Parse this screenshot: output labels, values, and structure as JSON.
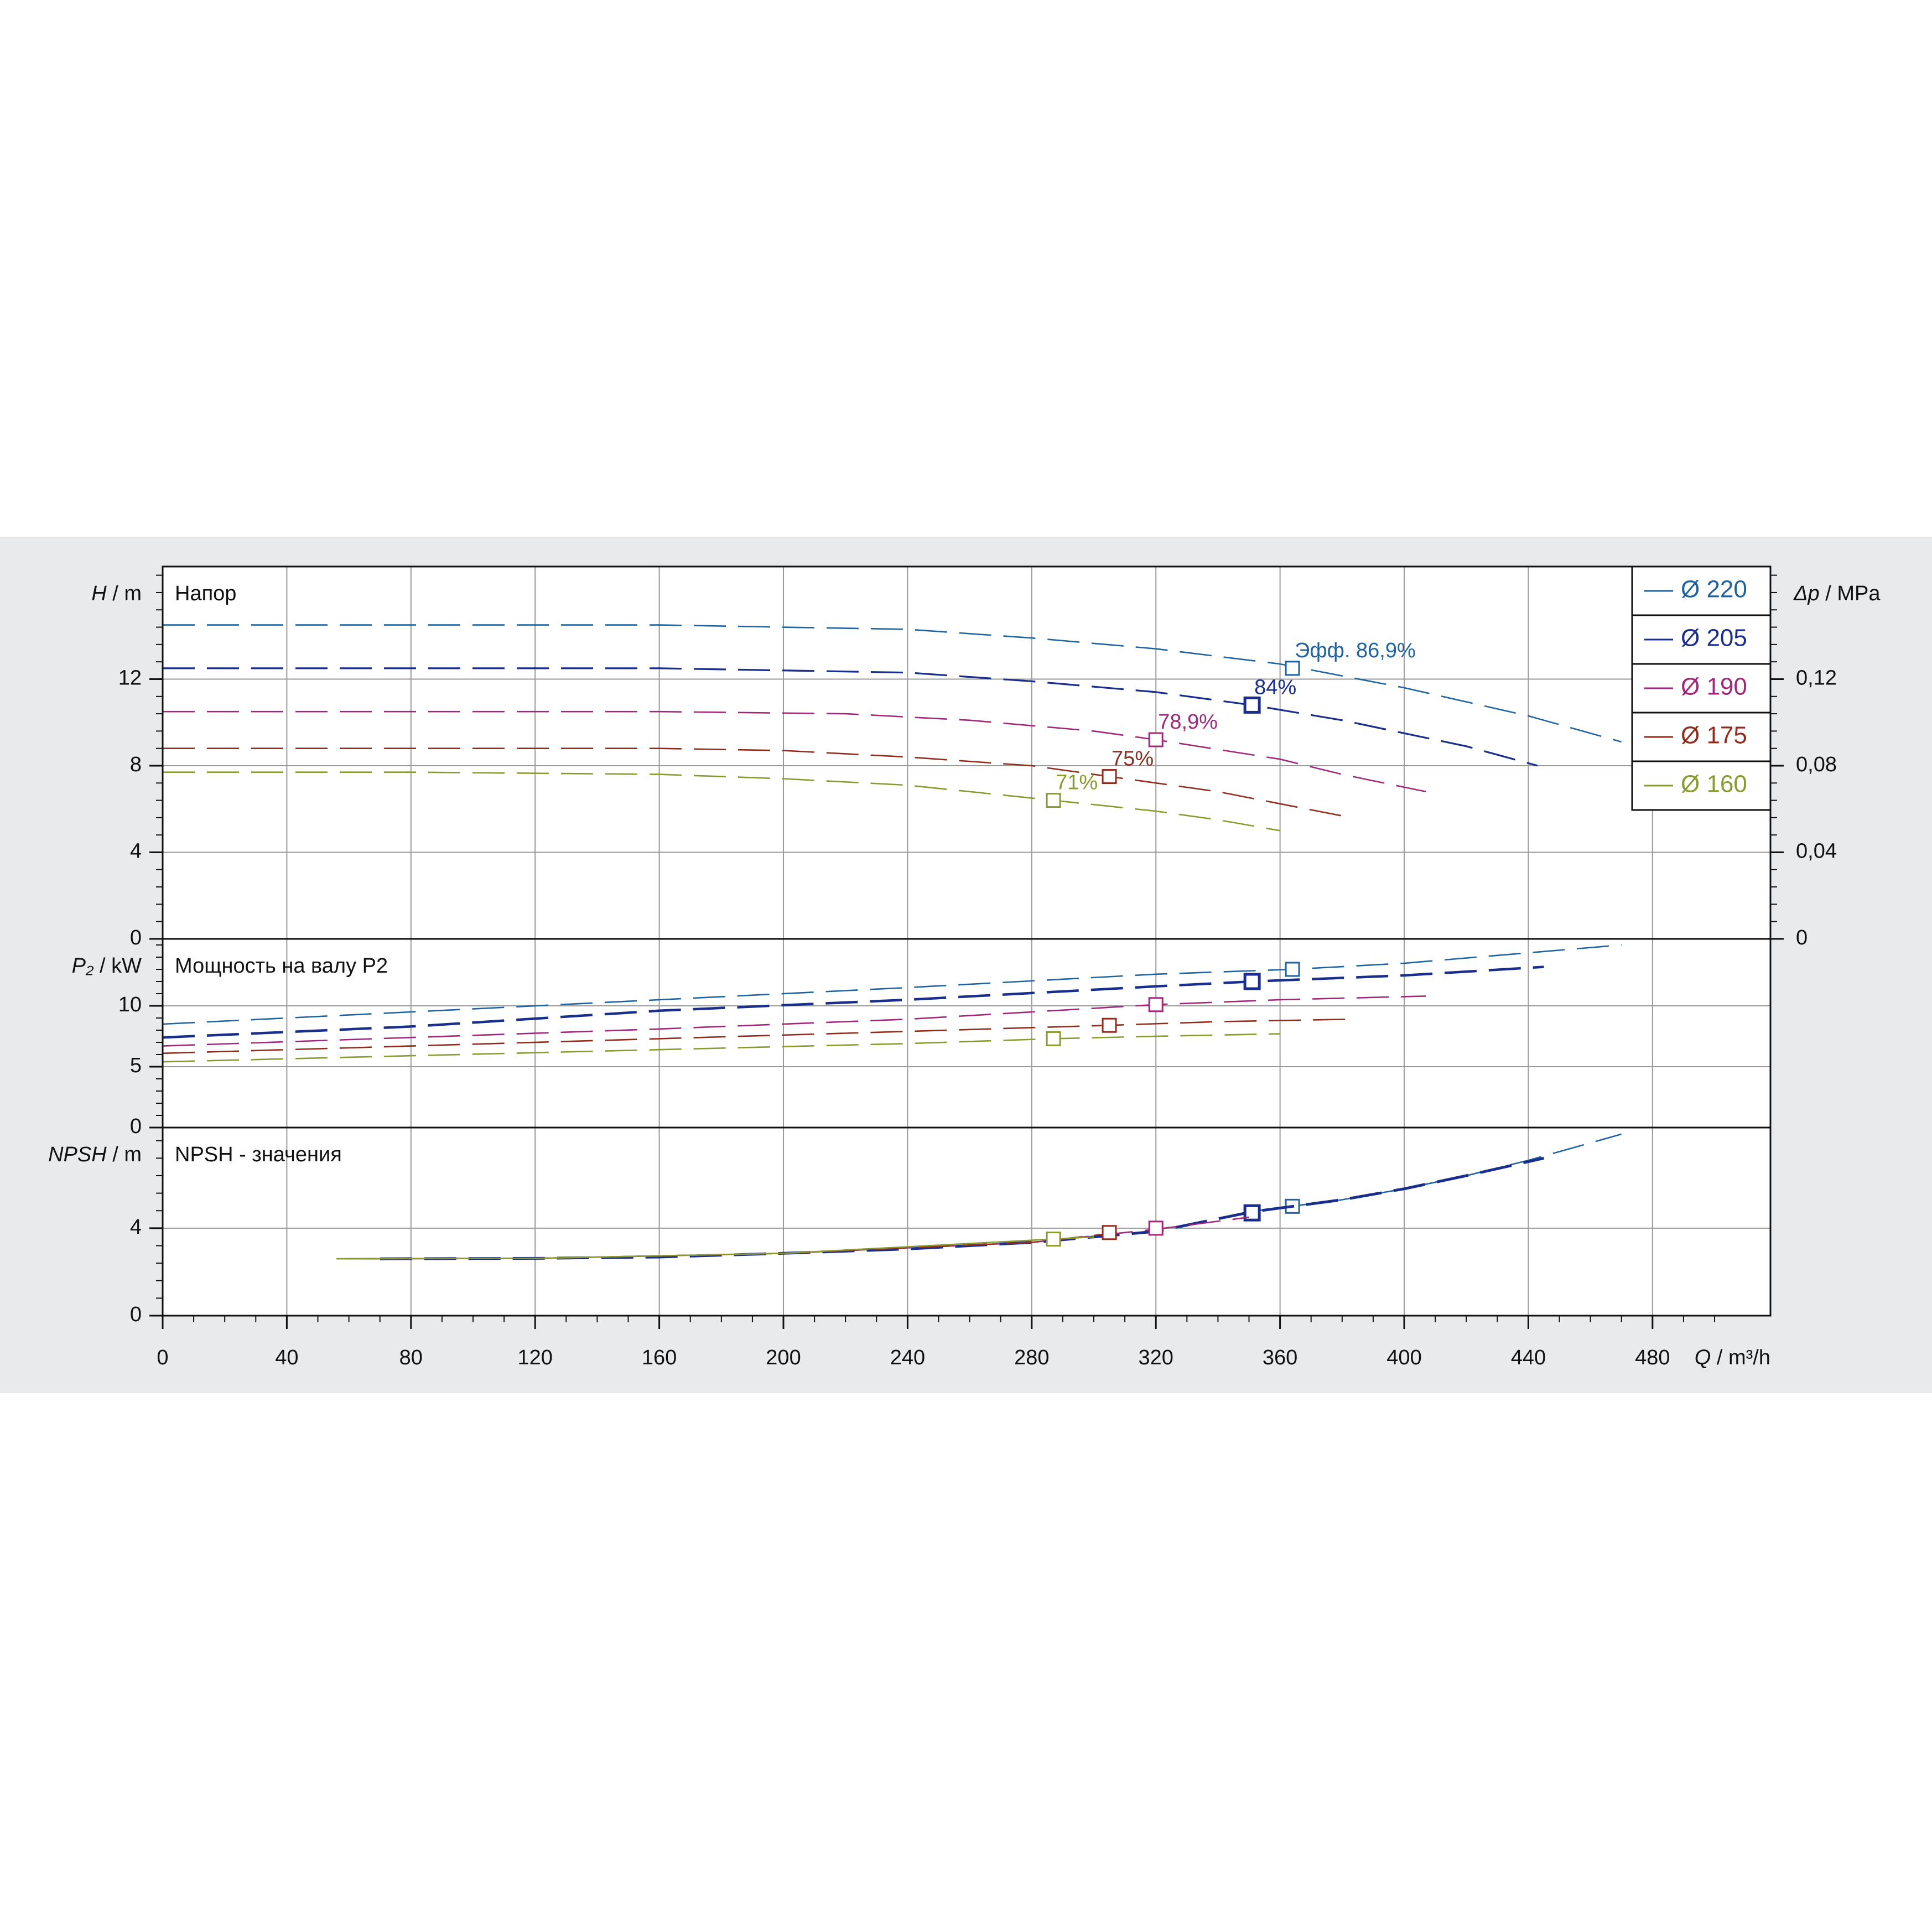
{
  "chart_data": [
    {
      "id": "head",
      "type": "line",
      "title": "Напор",
      "ylabel_var": "H",
      "ylabel_unit": " / m",
      "y2label_var": "Δp",
      "y2label_unit": " / MPa",
      "ylim": [
        0,
        17.2
      ],
      "y2lim": [
        0,
        0.172
      ],
      "yticks": [
        0,
        4,
        8,
        12
      ],
      "ytick_labels": [
        "0",
        "4",
        "8",
        "12"
      ],
      "y2ticks": [
        0,
        0.04,
        0.08,
        0.12
      ],
      "y2tick_labels": [
        "0",
        "0,04",
        "0,08",
        "0,12"
      ],
      "series": [
        {
          "name": "Ø 220",
          "color": "#1f63a0",
          "dashed": true,
          "width": 2.6,
          "x": [
            0,
            80,
            160,
            240,
            280,
            320,
            360,
            400,
            440,
            470
          ],
          "y": [
            14.5,
            14.5,
            14.5,
            14.3,
            13.9,
            13.4,
            12.7,
            11.6,
            10.3,
            9.1
          ],
          "marker": {
            "x": 364,
            "y": 12.5,
            "label": "Эфф.  86,9%"
          }
        },
        {
          "name": "Ø 205",
          "color": "#1a2e8c",
          "dashed": true,
          "width": 3.2,
          "x": [
            0,
            80,
            160,
            240,
            280,
            320,
            351,
            380,
            420,
            443
          ],
          "y": [
            12.5,
            12.5,
            12.5,
            12.3,
            11.9,
            11.4,
            10.8,
            10.1,
            8.9,
            8.0
          ],
          "marker": {
            "x": 351,
            "y": 10.8,
            "label": "84%"
          }
        },
        {
          "name": "Ø 190",
          "color": "#a0287a",
          "dashed": true,
          "width": 2.6,
          "x": [
            0,
            80,
            160,
            220,
            260,
            300,
            320,
            360,
            380,
            407
          ],
          "y": [
            10.5,
            10.5,
            10.5,
            10.4,
            10.1,
            9.6,
            9.2,
            8.3,
            7.6,
            6.8
          ],
          "marker": {
            "x": 320,
            "y": 9.2,
            "label": "78,9%"
          }
        },
        {
          "name": "Ø 175",
          "color": "#8f2d1e",
          "dashed": true,
          "width": 2.6,
          "x": [
            0,
            80,
            160,
            200,
            240,
            280,
            305,
            340,
            383
          ],
          "y": [
            8.8,
            8.8,
            8.8,
            8.7,
            8.4,
            8.0,
            7.5,
            6.8,
            5.6
          ],
          "marker": {
            "x": 305,
            "y": 7.5,
            "label": "75%"
          }
        },
        {
          "name": "Ø 160",
          "color": "#8a9a2e",
          "dashed": true,
          "width": 2.6,
          "x": [
            0,
            80,
            160,
            200,
            240,
            287,
            320,
            340,
            360
          ],
          "y": [
            7.7,
            7.7,
            7.6,
            7.4,
            7.1,
            6.4,
            5.9,
            5.5,
            5.0
          ],
          "marker": {
            "x": 287,
            "y": 6.4,
            "label": "71%"
          }
        }
      ]
    },
    {
      "id": "power",
      "type": "line",
      "title": "Мощность  на валу P2",
      "ylabel_var": "P₂",
      "ylabel_unit": " / kW",
      "ylim": [
        0,
        15.5
      ],
      "yticks": [
        0,
        5,
        10
      ],
      "ytick_labels": [
        "0",
        "5",
        "10"
      ],
      "series": [
        {
          "name": "Ø 220",
          "color": "#1f63a0",
          "dashed": true,
          "width": 2.6,
          "x": [
            0,
            80,
            160,
            240,
            320,
            364,
            400,
            470
          ],
          "y": [
            8.5,
            9.5,
            10.5,
            11.5,
            12.6,
            13.0,
            13.5,
            15.0
          ],
          "marker": {
            "x": 364,
            "y": 13.0
          }
        },
        {
          "name": "Ø 205",
          "color": "#1a2e8c",
          "dashed": true,
          "width": 4.5,
          "x": [
            0,
            80,
            160,
            240,
            320,
            351,
            400,
            445
          ],
          "y": [
            7.4,
            8.3,
            9.6,
            10.5,
            11.6,
            12.0,
            12.5,
            13.2
          ],
          "marker": {
            "x": 351,
            "y": 12.0
          }
        },
        {
          "name": "Ø 190",
          "color": "#a0287a",
          "dashed": true,
          "width": 2.6,
          "x": [
            0,
            80,
            160,
            240,
            320,
            360,
            407
          ],
          "y": [
            6.7,
            7.4,
            8.1,
            8.9,
            10.1,
            10.5,
            10.8
          ],
          "marker": {
            "x": 320,
            "y": 10.1
          }
        },
        {
          "name": "Ø 175",
          "color": "#8f2d1e",
          "dashed": true,
          "width": 2.6,
          "x": [
            0,
            80,
            160,
            240,
            305,
            340,
            383
          ],
          "y": [
            6.1,
            6.7,
            7.3,
            7.9,
            8.4,
            8.7,
            8.9
          ],
          "marker": {
            "x": 305,
            "y": 8.4
          }
        },
        {
          "name": "Ø 160",
          "color": "#8a9a2e",
          "dashed": true,
          "width": 2.6,
          "x": [
            0,
            80,
            160,
            240,
            287,
            320,
            360
          ],
          "y": [
            5.4,
            5.9,
            6.4,
            6.9,
            7.3,
            7.5,
            7.7
          ],
          "marker": {
            "x": 287,
            "y": 7.3
          }
        }
      ]
    },
    {
      "id": "npsh",
      "type": "line",
      "title": "NPSH - значения",
      "ylabel_var": "NPSH",
      "ylabel_unit": " / m",
      "ylim": [
        0,
        8.6
      ],
      "yticks": [
        0,
        4
      ],
      "ytick_labels": [
        "0",
        "4"
      ],
      "series": [
        {
          "name": "Ø 220",
          "color": "#1f63a0",
          "dashed": true,
          "width": 2.6,
          "x": [
            350,
            380,
            400,
            420,
            440,
            460,
            470
          ],
          "y": [
            4.75,
            5.3,
            5.8,
            6.4,
            7.1,
            7.9,
            8.3
          ],
          "marker": {
            "x": 364,
            "y": 5.0
          }
        },
        {
          "name": "Ø 205",
          "color": "#1a2e8c",
          "dashed": true,
          "width": 5,
          "x": [
            70,
            120,
            160,
            200,
            240,
            280,
            320,
            351,
            380,
            400,
            420,
            445
          ],
          "y": [
            2.6,
            2.62,
            2.68,
            2.85,
            3.05,
            3.35,
            3.85,
            4.75,
            5.3,
            5.8,
            6.4,
            7.2
          ],
          "marker": {
            "x": 351,
            "y": 4.7
          }
        },
        {
          "name": "Ø 190",
          "color": "#a0287a",
          "dashed": true,
          "width": 2.6,
          "x": [
            60,
            120,
            200,
            280,
            320,
            350
          ],
          "y": [
            2.6,
            2.62,
            2.85,
            3.35,
            3.95,
            4.5
          ],
          "marker": {
            "x": 320,
            "y": 4.0
          }
        },
        {
          "name": "Ø 175",
          "color": "#8f2d1e",
          "dashed": true,
          "width": 2.6,
          "x": [
            58,
            120,
            200,
            280,
            305
          ],
          "y": [
            2.6,
            2.62,
            2.85,
            3.35,
            3.75
          ],
          "marker": {
            "x": 305,
            "y": 3.8
          }
        },
        {
          "name": "Ø 160",
          "color": "#8a9a2e",
          "dashed": false,
          "width": 2.6,
          "x": [
            56,
            120,
            200,
            287,
            300
          ],
          "y": [
            2.6,
            2.62,
            2.85,
            3.5,
            3.6
          ],
          "marker": {
            "x": 287,
            "y": 3.5
          }
        }
      ]
    }
  ],
  "x_axis": {
    "label_var": "Q",
    "label_unit": " / m³/h",
    "xlim": [
      0,
      518
    ],
    "ticks": [
      0,
      40,
      80,
      120,
      160,
      200,
      240,
      280,
      320,
      360,
      400,
      440,
      480
    ],
    "tick_labels": [
      "0",
      "40",
      "80",
      "120",
      "160",
      "200",
      "240",
      "280",
      "320",
      "360",
      "400",
      "440",
      "480"
    ]
  },
  "legend": {
    "placement": "top-right",
    "entries": [
      {
        "label": "Ø 220",
        "color": "#1f63a0"
      },
      {
        "label": "Ø 205",
        "color": "#1a2e8c"
      },
      {
        "label": "Ø 190",
        "color": "#a0287a"
      },
      {
        "label": "Ø 175",
        "color": "#8f2d1e"
      },
      {
        "label": "Ø 160",
        "color": "#8a9a2e"
      }
    ]
  },
  "colors": {
    "panel_background": "#e9eaec",
    "plot_background": "#ffffff",
    "grid": "#9a9a9a",
    "axis": "#111111"
  }
}
